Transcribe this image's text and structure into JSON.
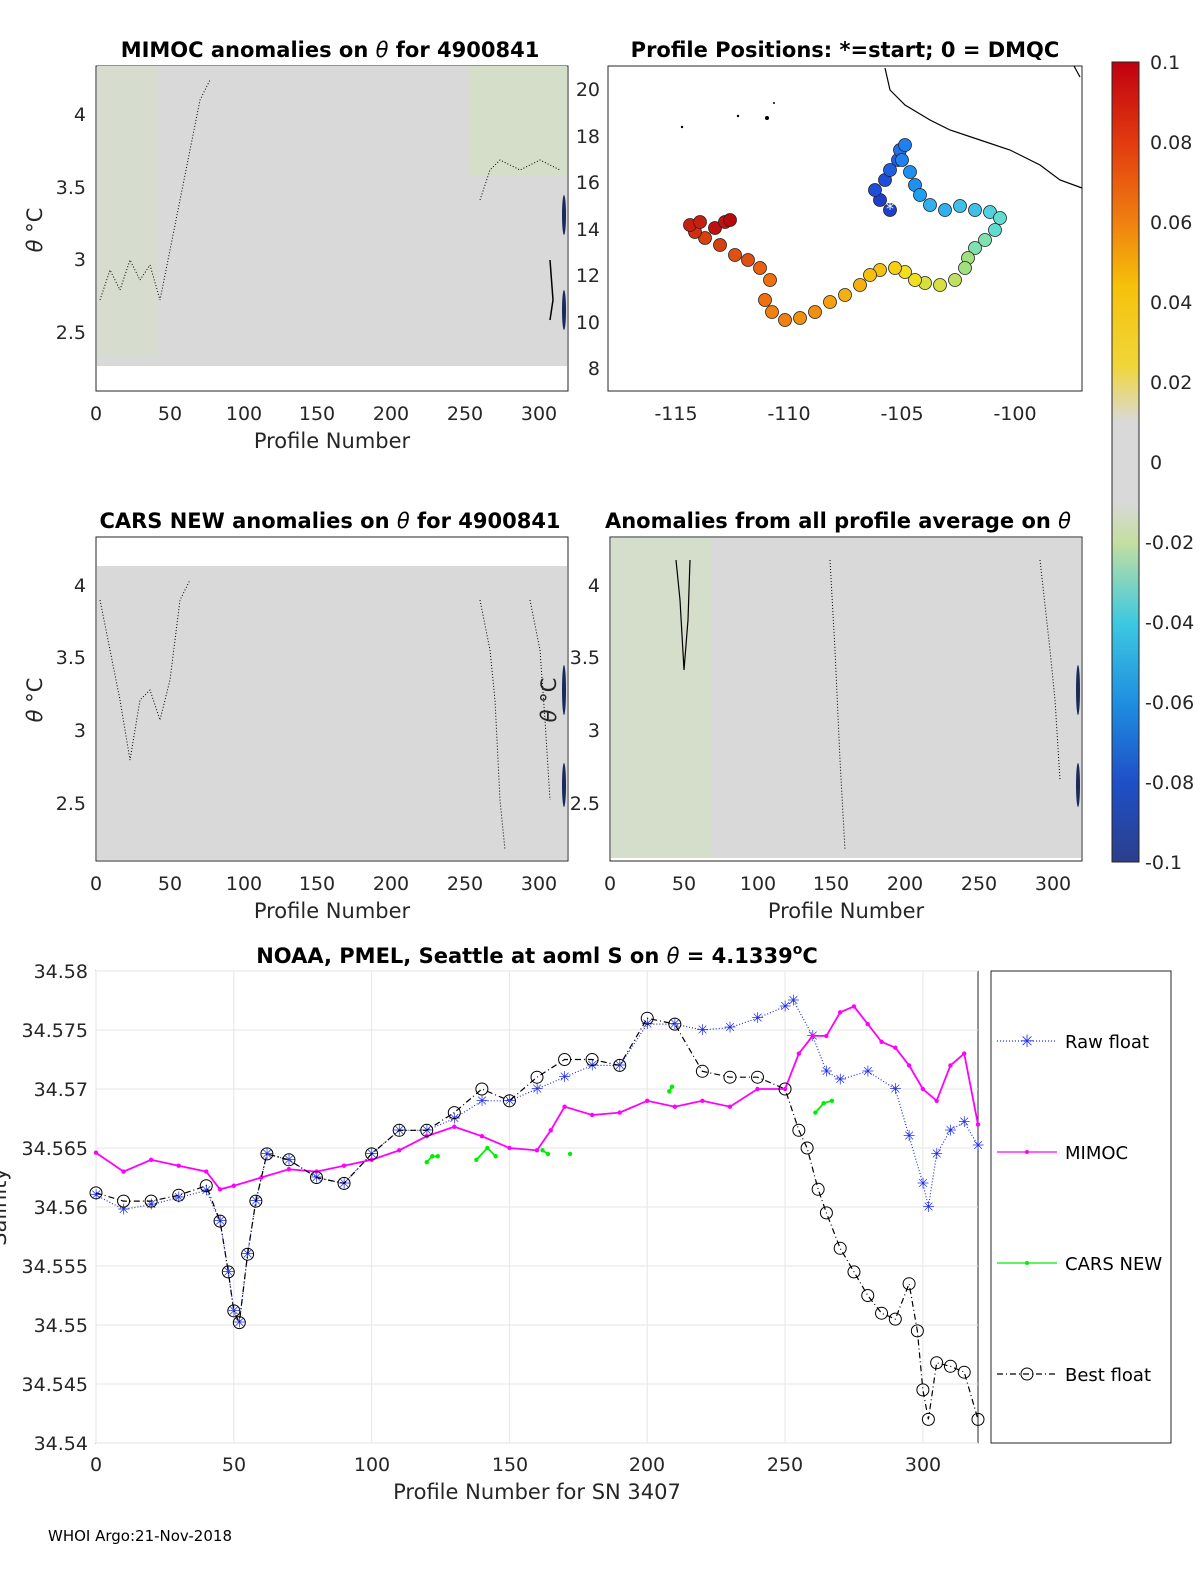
{
  "footer": "WHOI Argo:21-Nov-2018",
  "colorbar": {
    "ticks": [
      "0.1",
      "0.08",
      "0.06",
      "0.04",
      "0.02",
      "0",
      "-0.02",
      "-0.04",
      "-0.06",
      "-0.08",
      "-0.1"
    ],
    "range": [
      -0.1,
      0.1
    ],
    "colormap": "jet"
  },
  "panel_a": {
    "title_main": "MIMOC anomalies on ",
    "title_theta": "θ",
    "title_tail": " for 4900841",
    "ylabel_theta": "θ",
    "ylabel_unit": " °C",
    "xlabel": "Profile Number",
    "xticks": [
      "0",
      "50",
      "100",
      "150",
      "200",
      "250",
      "300"
    ],
    "yticks": [
      "4",
      "3.5",
      "3",
      "2.5"
    ]
  },
  "panel_b": {
    "title": "Profile Positions: *=start; 0 = DMQC",
    "xticks": [
      "-115",
      "-110",
      "-105",
      "-100"
    ],
    "yticks": [
      "20",
      "18",
      "16",
      "14",
      "12",
      "10",
      "8"
    ]
  },
  "panel_c": {
    "title_main": "CARS NEW anomalies on ",
    "title_theta": "θ",
    "title_tail": " for 4900841",
    "ylabel_theta": "θ",
    "ylabel_unit": " °C",
    "xlabel": "Profile Number",
    "xticks": [
      "0",
      "50",
      "100",
      "150",
      "200",
      "250",
      "300"
    ],
    "yticks": [
      "4",
      "3.5",
      "3",
      "2.5"
    ]
  },
  "panel_d": {
    "title_main": "Anomalies from all profile average on ",
    "title_theta": "θ",
    "ylabel_theta": "θ",
    "ylabel_unit": " °C",
    "xlabel": "Profile Number",
    "xticks": [
      "0",
      "50",
      "100",
      "150",
      "200",
      "250",
      "300"
    ],
    "yticks": [
      "4",
      "3.5",
      "3",
      "2.5"
    ]
  },
  "chart_data": {
    "type": "line",
    "title_main": "NOAA, PMEL, Seattle at aoml S on ",
    "title_theta": "θ",
    "title_value": " = 4.1339",
    "title_sup": "o",
    "title_unit": "C",
    "xlabel": "Profile Number for SN 3407",
    "ylabel": "Salinity",
    "xlim": [
      0,
      320
    ],
    "ylim": [
      34.54,
      34.58
    ],
    "xticks": [
      "0",
      "50",
      "100",
      "150",
      "200",
      "250",
      "300"
    ],
    "yticks": [
      "34.58",
      "34.575",
      "34.57",
      "34.565",
      "34.56",
      "34.555",
      "34.55",
      "34.545",
      "34.54"
    ],
    "grid": true,
    "legend_position": "outside-right",
    "series": [
      {
        "name": "Raw float",
        "color": "#1f2ee8",
        "marker": "asterisk",
        "style": "dotted",
        "x": [
          0,
          10,
          20,
          30,
          40,
          45,
          48,
          50,
          52,
          55,
          58,
          62,
          70,
          80,
          90,
          100,
          110,
          120,
          130,
          140,
          150,
          160,
          170,
          180,
          190,
          200,
          210,
          220,
          230,
          240,
          250,
          253,
          260,
          265,
          270,
          280,
          290,
          295,
          300,
          302,
          305,
          310,
          315,
          320
        ],
        "y": [
          34.561,
          34.5598,
          34.5602,
          34.5608,
          34.5614,
          34.5588,
          34.5545,
          34.5512,
          34.5502,
          34.556,
          34.5605,
          34.5645,
          34.564,
          34.5625,
          34.562,
          34.5645,
          34.5665,
          34.5665,
          34.5675,
          34.569,
          34.569,
          34.57,
          34.571,
          34.572,
          34.572,
          34.5755,
          34.5755,
          34.575,
          34.5752,
          34.576,
          34.577,
          34.5775,
          34.5745,
          34.5715,
          34.5708,
          34.5715,
          34.57,
          34.566,
          34.562,
          34.56,
          34.5645,
          34.5665,
          34.5672,
          34.5652
        ]
      },
      {
        "name": "MIMOC",
        "color": "#ff00ff",
        "marker": "point",
        "style": "solid",
        "x": [
          0,
          10,
          20,
          30,
          40,
          45,
          50,
          60,
          70,
          80,
          90,
          100,
          110,
          120,
          130,
          140,
          150,
          160,
          165,
          170,
          180,
          190,
          200,
          210,
          220,
          230,
          240,
          250,
          255,
          260,
          265,
          270,
          275,
          280,
          285,
          290,
          295,
          300,
          305,
          310,
          315,
          320
        ],
        "y": [
          34.5646,
          34.563,
          34.564,
          34.5635,
          34.563,
          34.5615,
          34.5618,
          34.5625,
          34.5632,
          34.563,
          34.5635,
          34.564,
          34.5648,
          34.566,
          34.5668,
          34.566,
          34.565,
          34.5648,
          34.5665,
          34.5685,
          34.5678,
          34.568,
          34.569,
          34.5685,
          34.569,
          34.5685,
          34.57,
          34.57,
          34.573,
          34.5745,
          34.5745,
          34.5765,
          34.577,
          34.5755,
          34.574,
          34.5735,
          34.572,
          34.57,
          34.569,
          34.572,
          34.573,
          34.567
        ]
      },
      {
        "name": "CARS NEW",
        "color": "#00ee00",
        "marker": "point",
        "style": "solid",
        "x": [
          120,
          122,
          124,
          138,
          142,
          145,
          162,
          164,
          172,
          208,
          209,
          261,
          264,
          267
        ],
        "y": [
          34.5638,
          34.5643,
          34.5643,
          34.564,
          34.565,
          34.5643,
          34.5648,
          34.5645,
          34.5645,
          34.5698,
          34.5702,
          34.568,
          34.5688,
          34.569
        ]
      },
      {
        "name": "Best float",
        "color": "#000000",
        "marker": "circle",
        "style": "dashdot",
        "x": [
          0,
          10,
          20,
          30,
          40,
          45,
          48,
          50,
          52,
          55,
          58,
          62,
          70,
          80,
          90,
          100,
          110,
          120,
          130,
          140,
          150,
          160,
          170,
          180,
          190,
          200,
          210,
          220,
          230,
          240,
          250,
          255,
          258,
          262,
          265,
          270,
          275,
          280,
          285,
          290,
          295,
          298,
          300,
          302,
          305,
          310,
          315,
          320
        ],
        "y": [
          34.5612,
          34.5605,
          34.5605,
          34.561,
          34.5618,
          34.5588,
          34.5545,
          34.5512,
          34.5502,
          34.556,
          34.5605,
          34.5645,
          34.564,
          34.5625,
          34.562,
          34.5645,
          34.5665,
          34.5665,
          34.568,
          34.57,
          34.569,
          34.571,
          34.5725,
          34.5725,
          34.572,
          34.576,
          34.5755,
          34.5715,
          34.571,
          34.571,
          34.57,
          34.5665,
          34.565,
          34.5615,
          34.5595,
          34.5565,
          34.5545,
          34.5525,
          34.551,
          34.5505,
          34.5535,
          34.5495,
          34.5445,
          34.542,
          34.5468,
          34.5465,
          34.546,
          34.542
        ]
      }
    ]
  }
}
